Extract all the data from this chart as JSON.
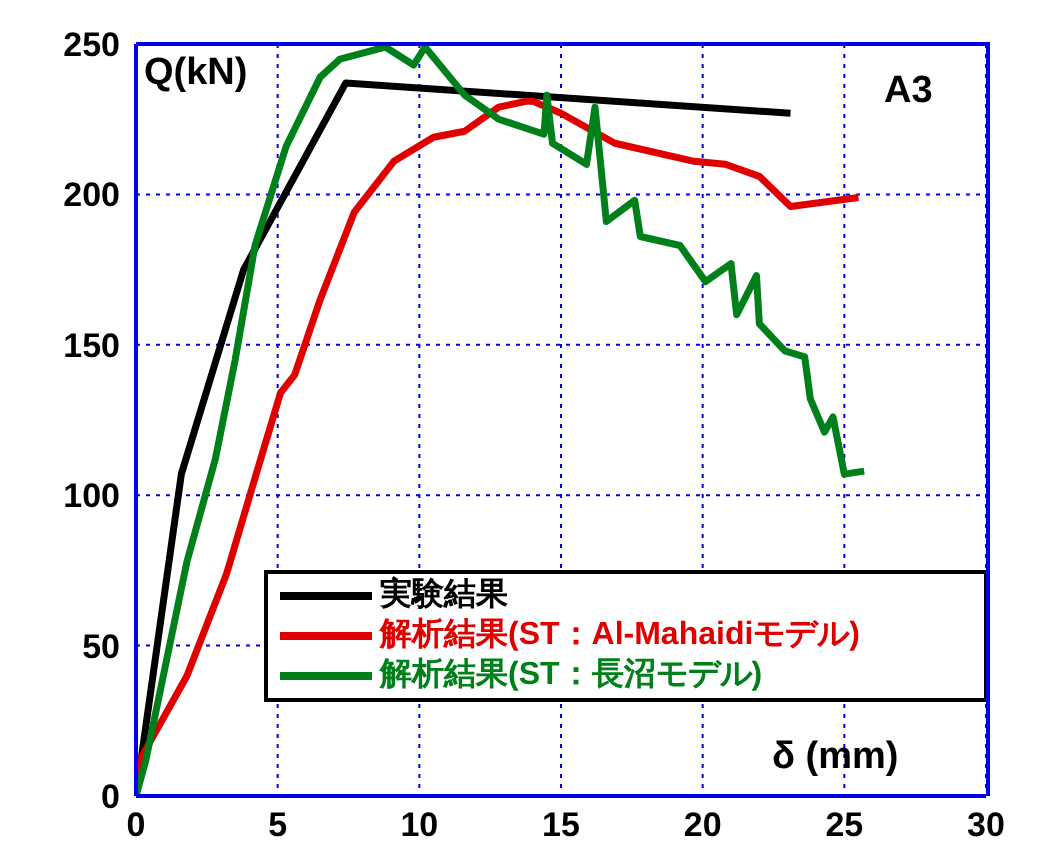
{
  "chart_data": {
    "type": "line",
    "xlabel": "δ (mm)",
    "ylabel": "Q(kN)",
    "annotations": [
      "A3"
    ],
    "xlim": [
      0,
      30
    ],
    "xticks": [
      0,
      5,
      10,
      15,
      20,
      25,
      30
    ],
    "ylim": [
      0,
      250
    ],
    "yticks": [
      0,
      50,
      100,
      150,
      200,
      250
    ],
    "grid": true,
    "legend": "bottom right",
    "marker": "none",
    "line_style": "solid",
    "series": [
      {
        "name": "実験結果",
        "color": "#000000",
        "x": [
          0,
          1.6,
          3.8,
          7.4,
          23.1
        ],
        "values": [
          0,
          107,
          175,
          237,
          227
        ]
      },
      {
        "name": "解析結果(ST：Al-Mahaidiモデル)",
        "color": "#e00000",
        "x": [
          0,
          0.14,
          1.8,
          3.2,
          4.4,
          5.1,
          5.6,
          6.5,
          7.7,
          9.1,
          10.5,
          11.6,
          12.8,
          13.8,
          14.0,
          15.0,
          16.9,
          19.7,
          20.8,
          22.0,
          23.1,
          25.5
        ],
        "values": [
          0,
          12,
          40,
          74,
          112,
          134,
          140,
          165,
          194,
          211,
          219,
          221,
          229,
          231,
          231,
          227,
          217,
          211,
          210,
          206,
          196,
          199
        ]
      },
      {
        "name": "解析結果(ST：長沼モデル)",
        "color": "#00801a",
        "x": [
          0,
          0.35,
          1.8,
          2.8,
          3.5,
          4.2,
          5.3,
          6.5,
          7.2,
          8.8,
          9.8,
          10.2,
          11.6,
          12.8,
          14.4,
          14.5,
          14.7,
          15.9,
          16.2,
          16.6,
          17.6,
          17.8,
          19.2,
          20.1,
          21.0,
          21.2,
          21.9,
          22.0,
          22.9,
          23.6,
          23.8,
          24.3,
          24.6,
          25.0,
          25.7
        ],
        "values": [
          0,
          12,
          78,
          112,
          145,
          183,
          216,
          239,
          245,
          249,
          243,
          249,
          233,
          225,
          220,
          233,
          217,
          210,
          229,
          191,
          198,
          186,
          183,
          171,
          177,
          160,
          173,
          157,
          148,
          146,
          132,
          121,
          126,
          107,
          108
        ]
      }
    ]
  }
}
